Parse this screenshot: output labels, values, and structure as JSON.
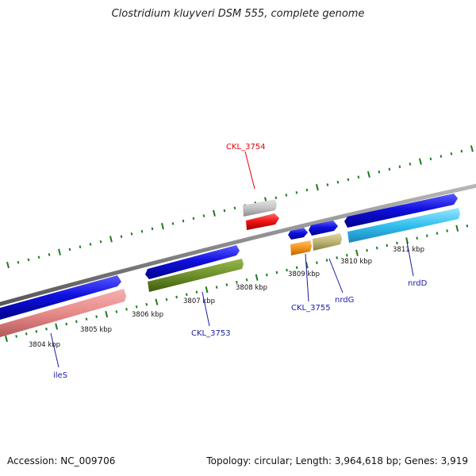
{
  "title": "Clostridium kluyveri DSM 555, complete genome",
  "footer": {
    "accession": "Accession: NC_009706",
    "stats": "Topology: circular; Length: 3,964,618 bp; Genes: 3,919"
  },
  "scale_labels": [
    {
      "id": "3804",
      "text": "3804 kbp"
    },
    {
      "id": "3805",
      "text": "3805 kbp"
    },
    {
      "id": "3806",
      "text": "3806 kbp"
    },
    {
      "id": "3807",
      "text": "3807 kbp"
    },
    {
      "id": "3808",
      "text": "3808 kbp"
    },
    {
      "id": "3809",
      "text": "3809 kbp"
    },
    {
      "id": "3810",
      "text": "3810 kbp"
    },
    {
      "id": "3811",
      "text": "3811 kbp"
    }
  ],
  "gene_labels": {
    "ckl_3754": {
      "text": "CKL_3754",
      "color": "#e8000b"
    },
    "ckl_3753": {
      "text": "CKL_3753",
      "color": "#1a1aa6"
    },
    "ckl_3755": {
      "text": "CKL_3755",
      "color": "#1a1aa6"
    },
    "nrdg": {
      "text": "nrdG",
      "color": "#1a1aa6"
    },
    "nrdd": {
      "text": "nrdD",
      "color": "#1a1aa6"
    },
    "iles": {
      "text": "ileS",
      "color": "#1a1aa6"
    }
  },
  "colors": {
    "backbone": "#8a8a8a",
    "tick": "#1f7a1f",
    "blue_gene": "#1010e0",
    "pink_gene": "#e88a8a",
    "olive_gene": "#6e8f2a",
    "red_gene": "#ee1111",
    "gray_gene": "#c4c4c4",
    "orange_gene": "#f4951a",
    "khaki_gene": "#bdb473",
    "cyan_gene": "#33c0ee",
    "label_line": "#1a1aa6",
    "label_line_red": "#e8000b"
  }
}
